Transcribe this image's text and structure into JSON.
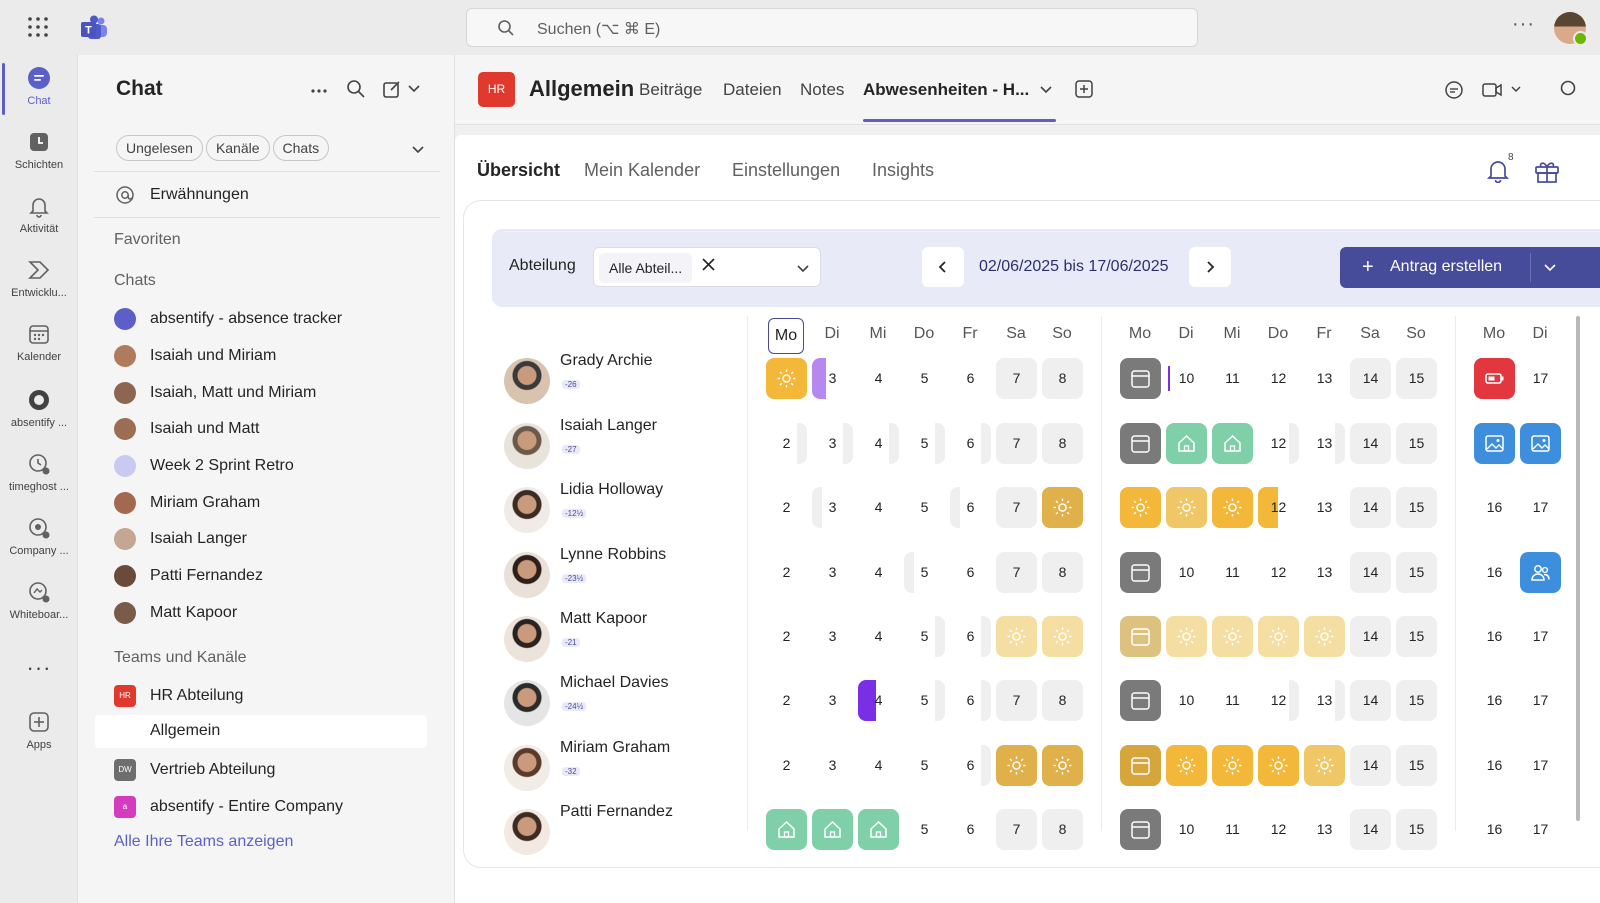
{
  "topbar": {
    "search_placeholder": "Suchen (⌥ ⌘ E)",
    "more": "···"
  },
  "rail": [
    {
      "label": "Chat",
      "icon": "chat-icon",
      "active": true
    },
    {
      "label": "Schichten",
      "icon": "shifts-icon"
    },
    {
      "label": "Aktivität",
      "icon": "bell-icon"
    },
    {
      "label": "Entwicklu...",
      "icon": "developer-icon"
    },
    {
      "label": "Kalender",
      "icon": "calendar-icon"
    },
    {
      "label": "absentify ...",
      "icon": "absentify-icon"
    },
    {
      "label": "timeghost ...",
      "icon": "timeghost-icon"
    },
    {
      "label": "Company ...",
      "icon": "company-icon"
    },
    {
      "label": "Whiteboar...",
      "icon": "whiteboard-icon"
    },
    {
      "label": "Apps",
      "icon": "apps-icon"
    }
  ],
  "rail_more": "···",
  "chatlist": {
    "title": "Chat",
    "filters": [
      "Ungelesen",
      "Kanäle",
      "Chats"
    ],
    "mentions": "Erwähnungen",
    "favorites": "Favoriten",
    "chats_header": "Chats",
    "chats": [
      {
        "label": "absentify - absence tracker",
        "color": "#5b5fc7"
      },
      {
        "label": "Isaiah und Miriam",
        "color": "#b07a5c"
      },
      {
        "label": "Isaiah, Matt und Miriam",
        "color": "#8c6650"
      },
      {
        "label": "Isaiah und Matt",
        "color": "#9a6d54"
      },
      {
        "label": "Week 2 Sprint Retro",
        "color": "#c9c9f2"
      },
      {
        "label": "Miriam Graham",
        "color": "#a3684f"
      },
      {
        "label": "Isaiah Langer",
        "color": "#c4a692"
      },
      {
        "label": "Patti Fernandez",
        "color": "#6a4a3a"
      },
      {
        "label": "Matt Kapoor",
        "color": "#7a5a48"
      }
    ],
    "teams_header": "Teams und Kanäle",
    "teams": [
      {
        "label": "HR Abteilung",
        "badge": "HR",
        "color": "#e03a2f"
      },
      {
        "label": "Allgemein",
        "badge": "",
        "color": "",
        "selected": true
      },
      {
        "label": "Vertrieb Abteilung",
        "badge": "DW",
        "color": "#6e6e6e"
      },
      {
        "label": "absentify - Entire Company",
        "badge": "a",
        "color": "#d43cbd"
      }
    ],
    "show_all": "Alle Ihre Teams anzeigen"
  },
  "channel": {
    "badge": "HR",
    "title": "Allgemein",
    "tabs": [
      "Beiträge",
      "Dateien",
      "Notes",
      "Abwesenheiten - H..."
    ]
  },
  "app": {
    "tabs": [
      "Übersicht",
      "Mein Kalender",
      "Einstellungen",
      "Insights"
    ],
    "notification_count": "8",
    "filter": {
      "label": "Abteilung",
      "selected": "Alle Abteil...",
      "date_range": "02/06/2025 bis 17/06/2025",
      "create": "Antrag erstellen"
    },
    "day_names": [
      "Mo",
      "Di",
      "Mi",
      "Do",
      "Fr",
      "Sa",
      "So",
      "Mo",
      "Di",
      "Mi",
      "Do",
      "Fr",
      "Sa",
      "So",
      "Mo",
      "Di"
    ],
    "people": [
      {
        "name": "Grady Archie",
        "balance": "-26"
      },
      {
        "name": "Isaiah Langer",
        "balance": "-27"
      },
      {
        "name": "Lidia Holloway",
        "balance": "-12½"
      },
      {
        "name": "Lynne Robbins",
        "balance": "-23½"
      },
      {
        "name": "Matt Kapoor",
        "balance": "-21"
      },
      {
        "name": "Michael Davies",
        "balance": "-24½"
      },
      {
        "name": "Miriam Graham",
        "balance": "-32"
      },
      {
        "name": "Patti Fernandez",
        "balance": ""
      }
    ],
    "grid": [
      [
        [
          "sun",
          ""
        ],
        [
          "purple",
          "3"
        ],
        [
          "",
          "4"
        ],
        [
          "",
          "5"
        ],
        [
          "",
          "6"
        ],
        [
          "wk",
          "7"
        ],
        [
          "wk",
          "8"
        ],
        [
          "cal-gray",
          ""
        ],
        [
          "vline",
          "10"
        ],
        [
          "",
          "11"
        ],
        [
          "",
          "12"
        ],
        [
          "",
          "13"
        ],
        [
          "wk",
          "14"
        ],
        [
          "wk",
          "15"
        ],
        [
          "red",
          ""
        ],
        [
          "",
          "17"
        ]
      ],
      [
        [
          "shade-r",
          "2"
        ],
        [
          "shade-r",
          "3"
        ],
        [
          "shade-r",
          "4"
        ],
        [
          "shade-r",
          "5"
        ],
        [
          "shade-r",
          "6"
        ],
        [
          "wk",
          "7"
        ],
        [
          "wk",
          "8"
        ],
        [
          "cal-gray",
          ""
        ],
        [
          "home",
          ""
        ],
        [
          "home",
          ""
        ],
        [
          "shade-r",
          "12"
        ],
        [
          "shade-r",
          "13"
        ],
        [
          "wk",
          "14"
        ],
        [
          "wk",
          "15"
        ],
        [
          "img",
          ""
        ],
        [
          "img",
          ""
        ]
      ],
      [
        [
          "",
          "2"
        ],
        [
          "shade-l",
          "3"
        ],
        [
          "",
          "4"
        ],
        [
          "",
          "5"
        ],
        [
          "shade-l",
          "6"
        ],
        [
          "wk",
          "7"
        ],
        [
          "sungold",
          ""
        ],
        [
          "sun",
          ""
        ],
        [
          "sunmid",
          ""
        ],
        [
          "sun",
          ""
        ],
        [
          "orange",
          "12"
        ],
        [
          "",
          "13"
        ],
        [
          "wk",
          "14"
        ],
        [
          "wk",
          "15"
        ],
        [
          "",
          "16"
        ],
        [
          "",
          "17"
        ]
      ],
      [
        [
          "",
          "2"
        ],
        [
          "",
          "3"
        ],
        [
          "",
          "4"
        ],
        [
          "shade-l",
          "5"
        ],
        [
          "",
          "6"
        ],
        [
          "wk",
          "7"
        ],
        [
          "wk",
          "8"
        ],
        [
          "cal-gray",
          ""
        ],
        [
          "",
          "10"
        ],
        [
          "",
          "11"
        ],
        [
          "",
          "12"
        ],
        [
          "",
          "13"
        ],
        [
          "wk",
          "14"
        ],
        [
          "wk",
          "15"
        ],
        [
          "",
          "16"
        ],
        [
          "people",
          ""
        ]
      ],
      [
        [
          "",
          "2"
        ],
        [
          "",
          "3"
        ],
        [
          "",
          "4"
        ],
        [
          "shade-r",
          "5"
        ],
        [
          "shade-r",
          "6"
        ],
        [
          "sunpale",
          ""
        ],
        [
          "sunpale",
          ""
        ],
        [
          "cal-tan",
          ""
        ],
        [
          "sunpale",
          ""
        ],
        [
          "sunpale",
          ""
        ],
        [
          "sunpale",
          ""
        ],
        [
          "sunpale",
          ""
        ],
        [
          "wk",
          "14"
        ],
        [
          "wk",
          "15"
        ],
        [
          "",
          "16"
        ],
        [
          "",
          "17"
        ]
      ],
      [
        [
          "",
          "2"
        ],
        [
          "",
          "3"
        ],
        [
          "purple2",
          "4"
        ],
        [
          "shade-r",
          "5"
        ],
        [
          "shade-r",
          "6"
        ],
        [
          "wk",
          "7"
        ],
        [
          "wk",
          "8"
        ],
        [
          "cal-gray",
          ""
        ],
        [
          "",
          "10"
        ],
        [
          "",
          "11"
        ],
        [
          "shade-r",
          "12"
        ],
        [
          "shade-r",
          "13"
        ],
        [
          "wk",
          "14"
        ],
        [
          "wk",
          "15"
        ],
        [
          "",
          "16"
        ],
        [
          "",
          "17"
        ]
      ],
      [
        [
          "",
          "2"
        ],
        [
          "",
          "3"
        ],
        [
          "",
          "4"
        ],
        [
          "",
          "5"
        ],
        [
          "shade-r",
          "6"
        ],
        [
          "sungold",
          ""
        ],
        [
          "sungold",
          ""
        ],
        [
          "cal-gold",
          ""
        ],
        [
          "sun",
          ""
        ],
        [
          "sun",
          ""
        ],
        [
          "sun",
          ""
        ],
        [
          "sunmid",
          ""
        ],
        [
          "wk",
          "14"
        ],
        [
          "wk",
          "15"
        ],
        [
          "",
          "16"
        ],
        [
          "",
          "17"
        ]
      ],
      [
        [
          "home",
          ""
        ],
        [
          "home",
          ""
        ],
        [
          "home",
          ""
        ],
        [
          "",
          "5"
        ],
        [
          "",
          "6"
        ],
        [
          "wk",
          "7"
        ],
        [
          "wk",
          "8"
        ],
        [
          "cal-gray",
          ""
        ],
        [
          "",
          "10"
        ],
        [
          "",
          "11"
        ],
        [
          "",
          "12"
        ],
        [
          "",
          "13"
        ],
        [
          "wk",
          "14"
        ],
        [
          "wk",
          "15"
        ],
        [
          "",
          "16"
        ],
        [
          "",
          "17"
        ]
      ]
    ]
  }
}
